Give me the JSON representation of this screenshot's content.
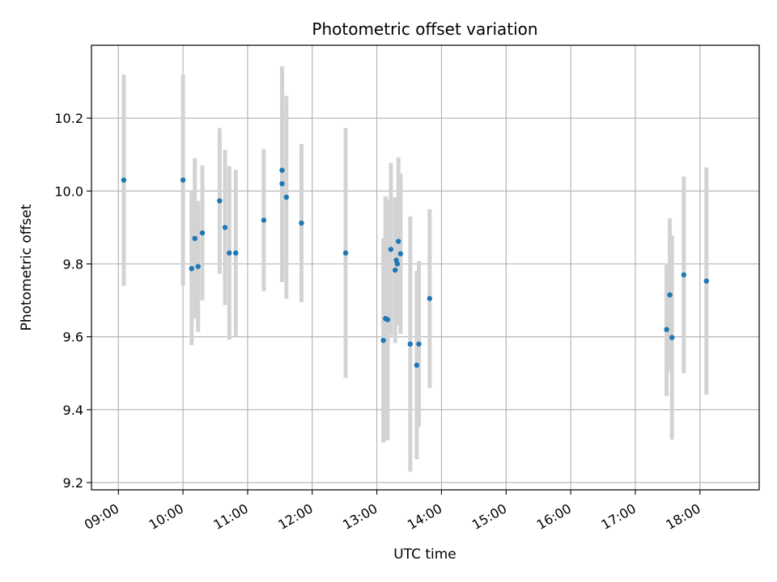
{
  "chart_data": {
    "type": "scatter",
    "title": "Photometric offset variation",
    "xlabel": "UTC time",
    "ylabel": "Photometric offset",
    "xlim": [
      "08:35",
      "18:55"
    ],
    "ylim": [
      9.18,
      10.4
    ],
    "grid": true,
    "x_ticks": [
      "09:00",
      "10:00",
      "11:00",
      "12:00",
      "13:00",
      "14:00",
      "15:00",
      "16:00",
      "17:00",
      "18:00"
    ],
    "y_ticks": [
      9.2,
      9.4,
      9.6,
      9.8,
      10.0,
      10.2
    ],
    "y_tick_labels": [
      "9.2",
      "9.4",
      "9.6",
      "9.8",
      "10.0",
      "10.2"
    ],
    "colors": {
      "points": "#1f77b4",
      "errorbars": "#d3d3d3",
      "grid": "#b0b0b0"
    },
    "series": [
      {
        "points": [
          {
            "x": "09:05",
            "y": 10.03,
            "err": 0.29
          },
          {
            "x": "10:00",
            "y": 10.03,
            "err": 0.29
          },
          {
            "x": "10:08",
            "y": 9.787,
            "err": 0.21
          },
          {
            "x": "10:11",
            "y": 9.87,
            "err": 0.22
          },
          {
            "x": "10:14",
            "y": 9.793,
            "err": 0.18
          },
          {
            "x": "10:18",
            "y": 9.885,
            "err": 0.185
          },
          {
            "x": "10:34",
            "y": 9.973,
            "err": 0.2
          },
          {
            "x": "10:39",
            "y": 9.9,
            "err": 0.213
          },
          {
            "x": "10:43",
            "y": 9.83,
            "err": 0.238
          },
          {
            "x": "10:49",
            "y": 9.83,
            "err": 0.228
          },
          {
            "x": "11:15",
            "y": 9.92,
            "err": 0.195
          },
          {
            "x": "11:32",
            "y": 10.057,
            "err": 0.285
          },
          {
            "x": "11:32",
            "y": 10.02,
            "err": 0.27
          },
          {
            "x": "11:36",
            "y": 9.983,
            "err": 0.278
          },
          {
            "x": "11:50",
            "y": 9.912,
            "err": 0.217
          },
          {
            "x": "12:31",
            "y": 9.83,
            "err": 0.343
          },
          {
            "x": "13:06",
            "y": 9.59,
            "err": 0.28
          },
          {
            "x": "13:08",
            "y": 9.65,
            "err": 0.335
          },
          {
            "x": "13:10",
            "y": 9.647,
            "err": 0.33
          },
          {
            "x": "13:13",
            "y": 9.84,
            "err": 0.237
          },
          {
            "x": "13:17",
            "y": 9.783,
            "err": 0.2
          },
          {
            "x": "13:18",
            "y": 9.81,
            "err": 0.17
          },
          {
            "x": "13:19",
            "y": 9.8,
            "err": 0.165
          },
          {
            "x": "13:20",
            "y": 9.862,
            "err": 0.23
          },
          {
            "x": "13:22",
            "y": 9.828,
            "err": 0.22
          },
          {
            "x": "13:31",
            "y": 9.58,
            "err": 0.35
          },
          {
            "x": "13:37",
            "y": 9.522,
            "err": 0.258
          },
          {
            "x": "13:39",
            "y": 9.58,
            "err": 0.228
          },
          {
            "x": "13:49",
            "y": 9.705,
            "err": 0.245
          },
          {
            "x": "17:29",
            "y": 9.62,
            "err": 0.182
          },
          {
            "x": "17:32",
            "y": 9.715,
            "err": 0.21
          },
          {
            "x": "17:34",
            "y": 9.598,
            "err": 0.28
          },
          {
            "x": "17:45",
            "y": 9.77,
            "err": 0.27
          },
          {
            "x": "18:06",
            "y": 9.753,
            "err": 0.312
          }
        ]
      }
    ]
  }
}
